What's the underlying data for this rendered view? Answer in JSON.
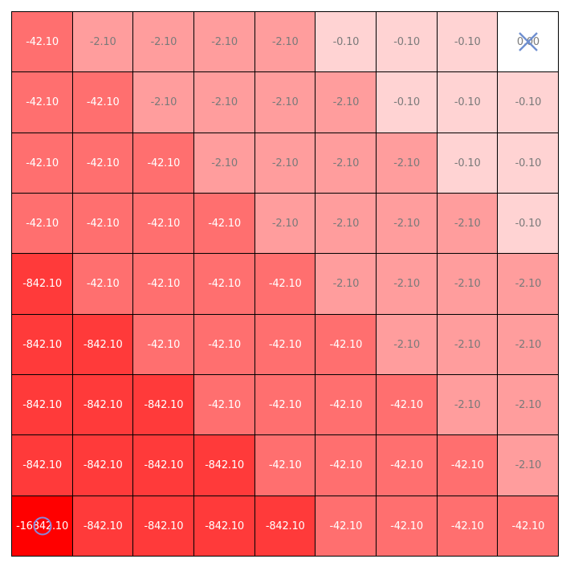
{
  "grid": {
    "rows": 9,
    "cols": 9,
    "values": [
      [
        "-42.10",
        "-2.10",
        "-2.10",
        "-2.10",
        "-2.10",
        "-0.10",
        "-0.10",
        "-0.10",
        "0.00"
      ],
      [
        "-42.10",
        "-42.10",
        "-2.10",
        "-2.10",
        "-2.10",
        "-2.10",
        "-0.10",
        "-0.10",
        "-0.10"
      ],
      [
        "-42.10",
        "-42.10",
        "-42.10",
        "-2.10",
        "-2.10",
        "-2.10",
        "-2.10",
        "-0.10",
        "-0.10"
      ],
      [
        "-42.10",
        "-42.10",
        "-42.10",
        "-42.10",
        "-2.10",
        "-2.10",
        "-2.10",
        "-2.10",
        "-0.10"
      ],
      [
        "-842.10",
        "-42.10",
        "-42.10",
        "-42.10",
        "-42.10",
        "-2.10",
        "-2.10",
        "-2.10",
        "-2.10"
      ],
      [
        "-842.10",
        "-842.10",
        "-42.10",
        "-42.10",
        "-42.10",
        "-42.10",
        "-2.10",
        "-2.10",
        "-2.10"
      ],
      [
        "-842.10",
        "-842.10",
        "-842.10",
        "-42.10",
        "-42.10",
        "-42.10",
        "-42.10",
        "-2.10",
        "-2.10"
      ],
      [
        "-842.10",
        "-842.10",
        "-842.10",
        "-842.10",
        "-42.10",
        "-42.10",
        "-42.10",
        "-42.10",
        "-2.10"
      ],
      [
        "-16842.10",
        "-842.10",
        "-842.10",
        "-842.10",
        "-842.10",
        "-42.10",
        "-42.10",
        "-42.10",
        "-42.10"
      ]
    ]
  },
  "markers": {
    "goal": {
      "icon": "x-mark-icon",
      "row": 0,
      "col": 8,
      "color": "#6f8fd0"
    },
    "agent": {
      "icon": "circle-icon",
      "row": 8,
      "col": 0,
      "color": "#8a86d8"
    }
  },
  "colors": {
    "zero": "#ffffff",
    "tier_0_10": "#ffd3d3",
    "tier_2_10": "#ff9d9d",
    "tier_42_10": "#ff6f6f",
    "tier_842_10": "#ff3a3a",
    "tier_16842_10": "#ff0000",
    "grid_line": "#000000"
  }
}
